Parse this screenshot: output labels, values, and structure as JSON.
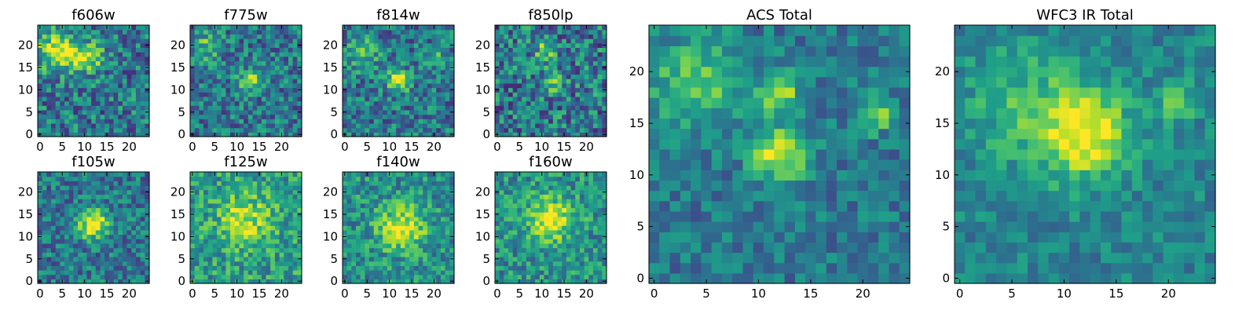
{
  "chart_data": [
    {
      "type": "heatmap",
      "title": "f606w",
      "x_ticks": [
        "0",
        "5",
        "10",
        "15",
        "20"
      ],
      "y_ticks": [
        "0",
        "5",
        "10",
        "15",
        "20"
      ],
      "xlim": [
        0,
        25
      ],
      "ylim": [
        0,
        25
      ],
      "seed": 11,
      "noise": 0.55,
      "colormap": "viridis",
      "blobs": [
        {
          "x": 3,
          "y": 19,
          "amp": 0.45,
          "sigma": 3.0
        },
        {
          "x": 8,
          "y": 18,
          "amp": 0.35,
          "sigma": 3.0
        },
        {
          "x": 12,
          "y": 17,
          "amp": 0.3,
          "sigma": 2.0
        }
      ]
    },
    {
      "type": "heatmap",
      "title": "f775w",
      "x_ticks": [
        "0",
        "5",
        "10",
        "15",
        "20"
      ],
      "y_ticks": [
        "0",
        "5",
        "10",
        "15",
        "20"
      ],
      "xlim": [
        0,
        25
      ],
      "ylim": [
        0,
        25
      ],
      "seed": 23,
      "noise": 0.5,
      "colormap": "viridis",
      "blobs": [
        {
          "x": 13,
          "y": 12,
          "amp": 0.55,
          "sigma": 1.6
        },
        {
          "x": 3,
          "y": 20,
          "amp": 0.25,
          "sigma": 2.5
        }
      ]
    },
    {
      "type": "heatmap",
      "title": "f814w",
      "x_ticks": [
        "0",
        "5",
        "10",
        "15",
        "20"
      ],
      "y_ticks": [
        "0",
        "5",
        "10",
        "15",
        "20"
      ],
      "xlim": [
        0,
        25
      ],
      "ylim": [
        0,
        25
      ],
      "seed": 37,
      "noise": 0.5,
      "colormap": "viridis",
      "blobs": [
        {
          "x": 12,
          "y": 12,
          "amp": 0.55,
          "sigma": 1.7
        },
        {
          "x": 4,
          "y": 18,
          "amp": 0.3,
          "sigma": 2.5
        },
        {
          "x": 21,
          "y": 17,
          "amp": 0.2,
          "sigma": 1.5
        }
      ]
    },
    {
      "type": "heatmap",
      "title": "f850lp",
      "x_ticks": [
        "0",
        "5",
        "10",
        "15",
        "20"
      ],
      "y_ticks": [
        "0",
        "5",
        "10",
        "15",
        "20"
      ],
      "xlim": [
        0,
        25
      ],
      "ylim": [
        0,
        25
      ],
      "seed": 41,
      "noise": 0.6,
      "colormap": "viridis",
      "blobs": [
        {
          "x": 13,
          "y": 12,
          "amp": 0.45,
          "sigma": 1.5
        },
        {
          "x": 11,
          "y": 19,
          "amp": 0.35,
          "sigma": 1.8
        }
      ]
    },
    {
      "type": "heatmap",
      "title": "f105w",
      "x_ticks": [
        "0",
        "5",
        "10",
        "15",
        "20"
      ],
      "y_ticks": [
        "0",
        "5",
        "10",
        "15",
        "20"
      ],
      "xlim": [
        0,
        25
      ],
      "ylim": [
        0,
        25
      ],
      "seed": 53,
      "noise": 0.45,
      "colormap": "viridis",
      "blobs": [
        {
          "x": 12,
          "y": 13,
          "amp": 0.6,
          "sigma": 2.4
        }
      ]
    },
    {
      "type": "heatmap",
      "title": "f125w",
      "x_ticks": [
        "0",
        "5",
        "10",
        "15",
        "20"
      ],
      "y_ticks": [
        "0",
        "5",
        "10",
        "15",
        "20"
      ],
      "xlim": [
        0,
        25
      ],
      "ylim": [
        0,
        25
      ],
      "seed": 67,
      "noise": 0.45,
      "colormap": "viridis",
      "base": 0.55,
      "blobs": [
        {
          "x": 12,
          "y": 14,
          "amp": 0.35,
          "sigma": 4.0
        }
      ]
    },
    {
      "type": "heatmap",
      "title": "f140w",
      "x_ticks": [
        "0",
        "5",
        "10",
        "15",
        "20"
      ],
      "y_ticks": [
        "0",
        "5",
        "10",
        "15",
        "20"
      ],
      "xlim": [
        0,
        25
      ],
      "ylim": [
        0,
        25
      ],
      "seed": 71,
      "noise": 0.45,
      "colormap": "viridis",
      "base": 0.5,
      "blobs": [
        {
          "x": 13,
          "y": 12,
          "amp": 0.45,
          "sigma": 3.5
        }
      ]
    },
    {
      "type": "heatmap",
      "title": "f160w",
      "x_ticks": [
        "0",
        "5",
        "10",
        "15",
        "20"
      ],
      "y_ticks": [
        "0",
        "5",
        "10",
        "15",
        "20"
      ],
      "xlim": [
        0,
        25
      ],
      "ylim": [
        0,
        25
      ],
      "seed": 83,
      "noise": 0.45,
      "colormap": "viridis",
      "base": 0.5,
      "blobs": [
        {
          "x": 12,
          "y": 14,
          "amp": 0.5,
          "sigma": 3.5
        }
      ]
    },
    {
      "type": "heatmap",
      "title": "ACS Total",
      "x_ticks": [
        "0",
        "5",
        "10",
        "15",
        "20"
      ],
      "y_ticks": [
        "0",
        "5",
        "10",
        "15",
        "20"
      ],
      "xlim": [
        0,
        25
      ],
      "ylim": [
        0,
        25
      ],
      "seed": 97,
      "noise": 0.32,
      "colormap": "viridis",
      "blobs": [
        {
          "x": 12,
          "y": 12,
          "amp": 0.55,
          "sigma": 1.8
        },
        {
          "x": 12,
          "y": 18,
          "amp": 0.45,
          "sigma": 1.5
        },
        {
          "x": 4,
          "y": 19,
          "amp": 0.35,
          "sigma": 3.0
        },
        {
          "x": 21,
          "y": 16,
          "amp": 0.45,
          "sigma": 1.2
        }
      ]
    },
    {
      "type": "heatmap",
      "title": "WFC3 IR Total",
      "x_ticks": [
        "0",
        "5",
        "10",
        "15",
        "20"
      ],
      "y_ticks": [
        "0",
        "5",
        "10",
        "15",
        "20"
      ],
      "xlim": [
        0,
        25
      ],
      "ylim": [
        0,
        25
      ],
      "seed": 109,
      "noise": 0.28,
      "colormap": "viridis",
      "base": 0.45,
      "blobs": [
        {
          "x": 12,
          "y": 14,
          "amp": 0.55,
          "sigma": 3.0
        },
        {
          "x": 21,
          "y": 17,
          "amp": 0.3,
          "sigma": 1.2
        },
        {
          "x": 6,
          "y": 17,
          "amp": 0.2,
          "sigma": 4.0
        }
      ]
    }
  ]
}
